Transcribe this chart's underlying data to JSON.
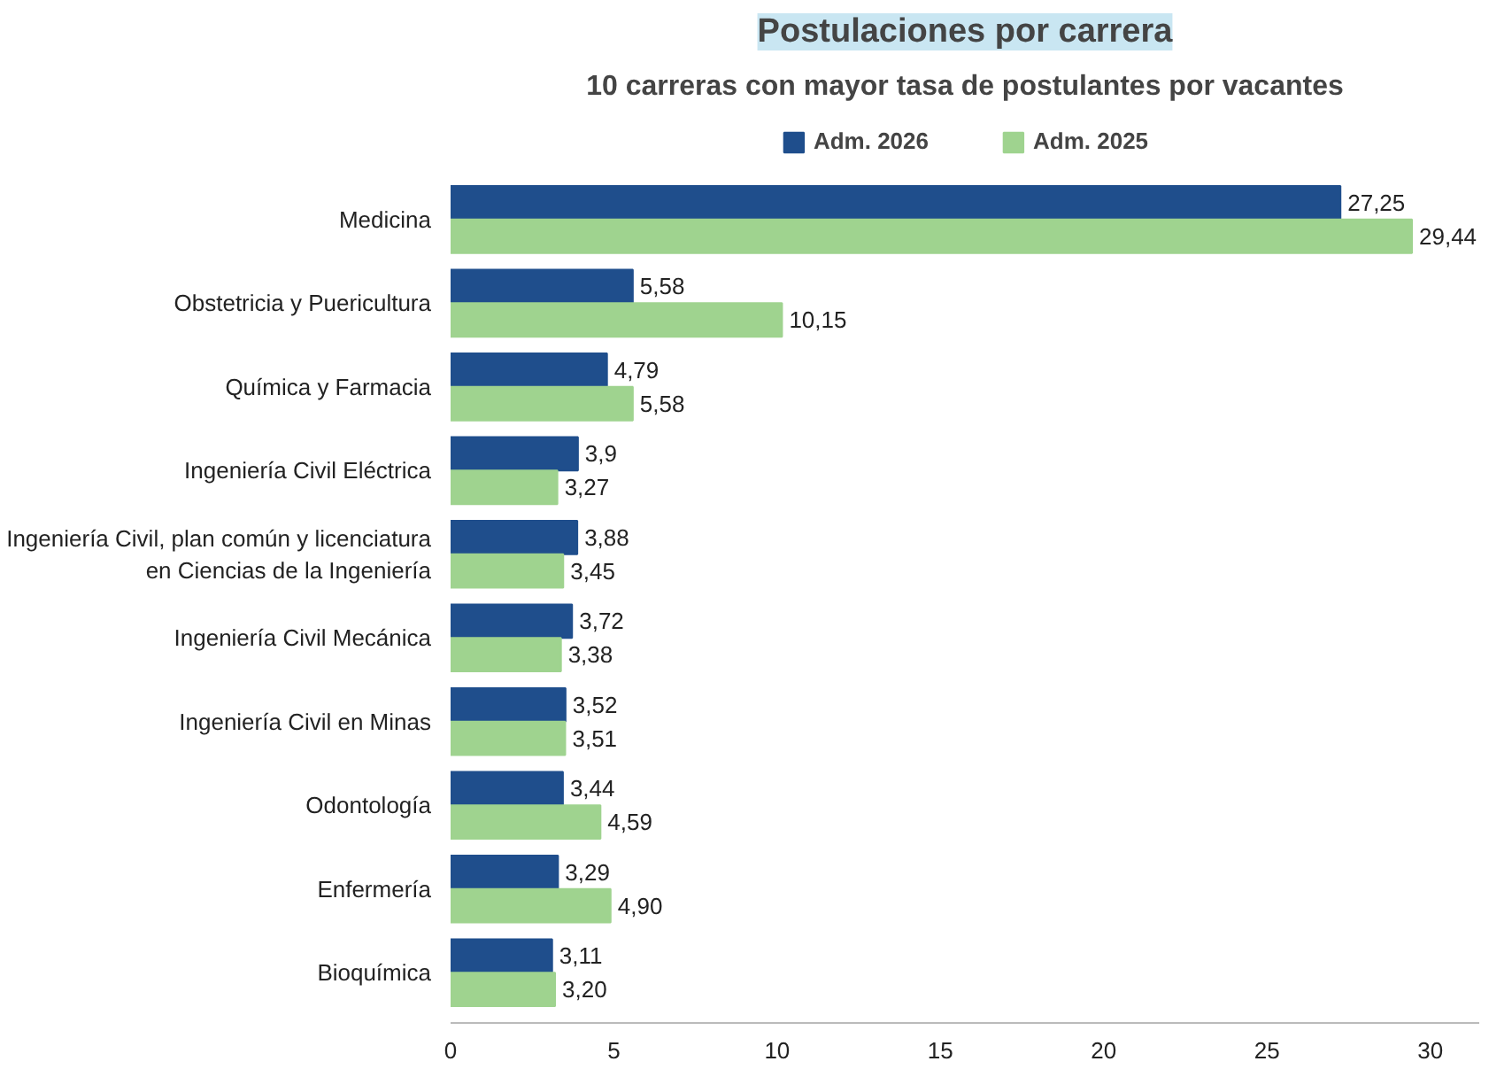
{
  "chart_data": {
    "type": "bar",
    "orientation": "horizontal",
    "title": "Postulaciones por carrera",
    "subtitle": "10 carreras con mayor tasa de postulantes por vacantes",
    "categories": [
      "Medicina",
      "Obstetricia y Puericultura",
      "Química y Farmacia",
      "Ingeniería Civil Eléctrica",
      "Ingeniería Civil, plan común y licenciatura\nen Ciencias de la Ingeniería",
      "Ingeniería Civil Mecánica",
      "Ingeniería Civil en Minas",
      "Odontología",
      "Enfermería",
      "Bioquímica"
    ],
    "series": [
      {
        "name": "Adm. 2026",
        "color": "#1f4e8c",
        "values": [
          27.25,
          5.58,
          4.79,
          3.9,
          3.88,
          3.72,
          3.52,
          3.44,
          3.29,
          3.11
        ],
        "value_labels": [
          "27,25",
          "5,58",
          "4,79",
          "3,9",
          "3,88",
          "3,72",
          "3,52",
          "3,44",
          "3,29",
          "3,11"
        ]
      },
      {
        "name": "Adm. 2025",
        "color": "#9fd38f",
        "values": [
          29.44,
          10.15,
          5.58,
          3.27,
          3.45,
          3.38,
          3.51,
          4.59,
          4.9,
          3.2
        ],
        "value_labels": [
          "29,44",
          "10,15",
          "5,58",
          "3,27",
          "3,45",
          "3,38",
          "3,51",
          "4,59",
          "4,90",
          "3,20"
        ]
      }
    ],
    "xlim": [
      0,
      31.5
    ],
    "xticks": [
      0,
      5,
      10,
      15,
      20,
      25,
      30
    ],
    "legend": "top",
    "grid": false
  }
}
